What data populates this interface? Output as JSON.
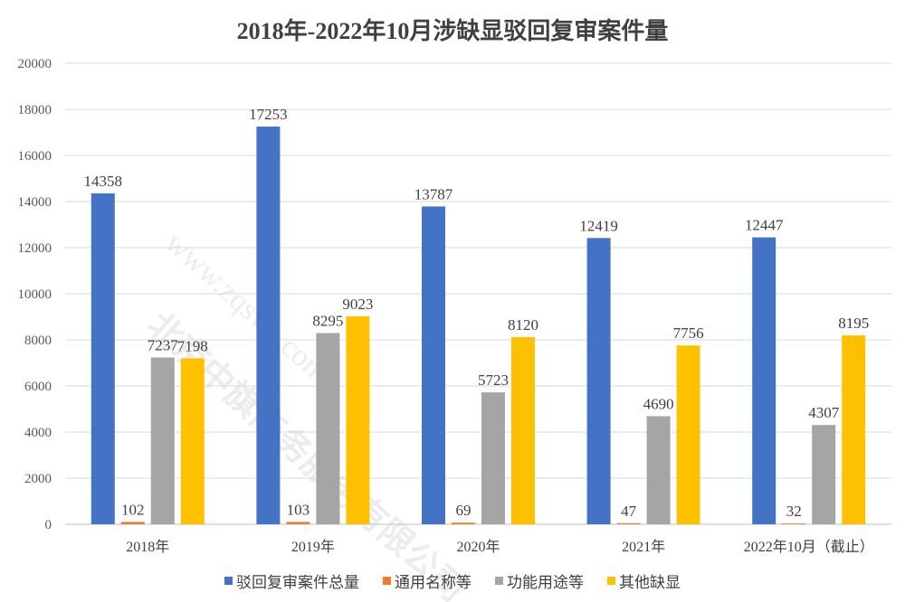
{
  "chart_data": {
    "type": "bar",
    "title": "2018年-2022年10月涉缺显驳回复审案件量",
    "categories": [
      "2018年",
      "2019年",
      "2020年",
      "2021年",
      "2022年10月（截止）"
    ],
    "series": [
      {
        "name": "驳回复审案件总量",
        "color": "#4472C4",
        "values": [
          14358,
          17253,
          13787,
          12419,
          12447
        ]
      },
      {
        "name": "通用名称等",
        "color": "#ED7D31",
        "values": [
          102,
          103,
          69,
          47,
          32
        ]
      },
      {
        "name": "功能用途等",
        "color": "#A5A5A5",
        "values": [
          7237,
          8295,
          5723,
          4690,
          4307
        ]
      },
      {
        "name": "其他缺显",
        "color": "#FFC000",
        "values": [
          7198,
          9023,
          8120,
          7756,
          8195
        ]
      }
    ],
    "ylim": [
      0,
      20000
    ],
    "yticks": [
      0,
      2000,
      4000,
      6000,
      8000,
      10000,
      12000,
      14000,
      16000,
      18000,
      20000
    ],
    "grid": true,
    "legend": "bottom",
    "data_labels": true
  },
  "watermark": {
    "company": "北京中旗商务服务有限公司",
    "url": "www.zqsws.com"
  }
}
